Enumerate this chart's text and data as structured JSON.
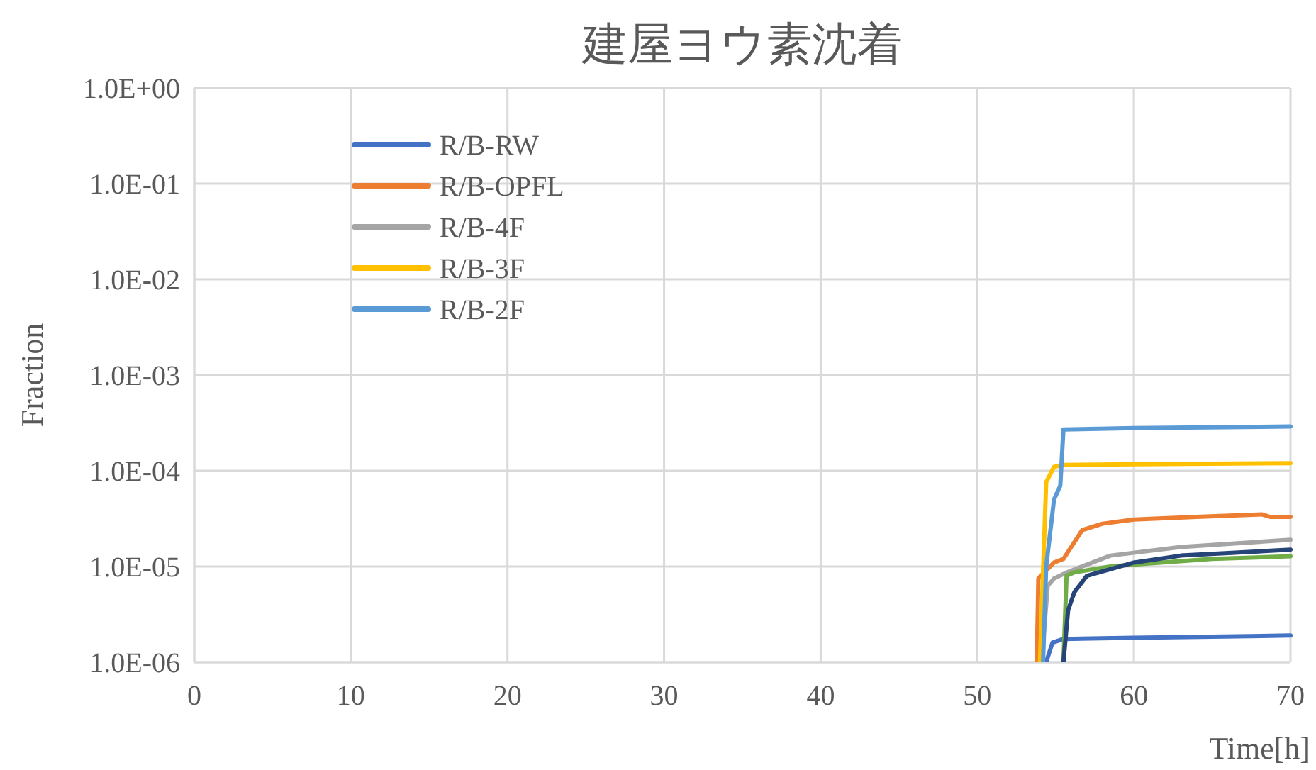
{
  "chart_data": {
    "type": "line",
    "title": "建屋ヨウ素沈着",
    "xlabel": "Time[h]",
    "ylabel": "Fraction",
    "log": "y",
    "grid": true,
    "legend": "top left",
    "xlim": [
      0,
      70
    ],
    "xticks": [
      0,
      10,
      20,
      30,
      40,
      50,
      60,
      70
    ],
    "ylim": [
      1e-06,
      1
    ],
    "yticks": [
      {
        "value": 1e-06,
        "label": "1.0E-06"
      },
      {
        "value": 1e-05,
        "label": "1.0E-05"
      },
      {
        "value": 0.0001,
        "label": "1.0E-04"
      },
      {
        "value": 0.001,
        "label": "1.0E-03"
      },
      {
        "value": 0.01,
        "label": "1.0E-02"
      },
      {
        "value": 0.1,
        "label": "1.0E-01"
      },
      {
        "value": 1,
        "label": "1.0E+00"
      }
    ],
    "series": [
      {
        "name": "R/B-RW",
        "color": "#4472c4",
        "x": [
          54.4,
          54.8,
          55.5,
          60,
          65,
          70
        ],
        "values": [
          1e-06,
          1.6e-06,
          1.75e-06,
          1.8e-06,
          1.85e-06,
          1.9e-06
        ]
      },
      {
        "name": "R/B-OPFL",
        "color": "#ed7d31",
        "x": [
          53.8,
          53.9,
          54.9,
          55.5,
          56.7,
          58,
          60,
          64,
          68.2,
          68.7,
          70
        ],
        "values": [
          1e-06,
          7.5e-06,
          1.1e-05,
          1.2e-05,
          2.4e-05,
          2.8e-05,
          3.1e-05,
          3.3e-05,
          3.5e-05,
          3.3e-05,
          3.3e-05
        ]
      },
      {
        "name": "R/B-4F",
        "color": "#a5a5a5",
        "x": [
          54.1,
          54.5,
          54.9,
          55.8,
          58.5,
          63,
          70
        ],
        "values": [
          1e-06,
          6.3e-06,
          7.5e-06,
          8.8e-06,
          1.3e-05,
          1.6e-05,
          1.9e-05
        ]
      },
      {
        "name": "R/B-3F",
        "color": "#ffc000",
        "x": [
          54,
          54.4,
          54.9,
          55.5,
          60,
          70
        ],
        "values": [
          1e-06,
          7.6e-05,
          0.00011,
          0.000115,
          0.000117,
          0.00012
        ]
      },
      {
        "name": "R/B-2F",
        "color": "#5b9bd5",
        "x": [
          54.2,
          54.4,
          54.9,
          55.3,
          55.5,
          60,
          70
        ],
        "values": [
          1e-06,
          1e-05,
          5e-05,
          7e-05,
          0.00027,
          0.00028,
          0.00029
        ]
      },
      {
        "color": "#70ad47",
        "x": [
          55.5,
          55.7,
          56.2,
          58.5,
          60,
          65,
          70
        ],
        "values": [
          1e-06,
          8e-06,
          8.7e-06,
          1e-05,
          1.05e-05,
          1.2e-05,
          1.28e-05
        ]
      },
      {
        "color": "#264478",
        "x": [
          55.5,
          55.8,
          56.2,
          57,
          60,
          63,
          70
        ],
        "values": [
          1e-06,
          3.5e-06,
          5.4e-06,
          8e-06,
          1.1e-05,
          1.3e-05,
          1.5e-05
        ]
      }
    ]
  }
}
